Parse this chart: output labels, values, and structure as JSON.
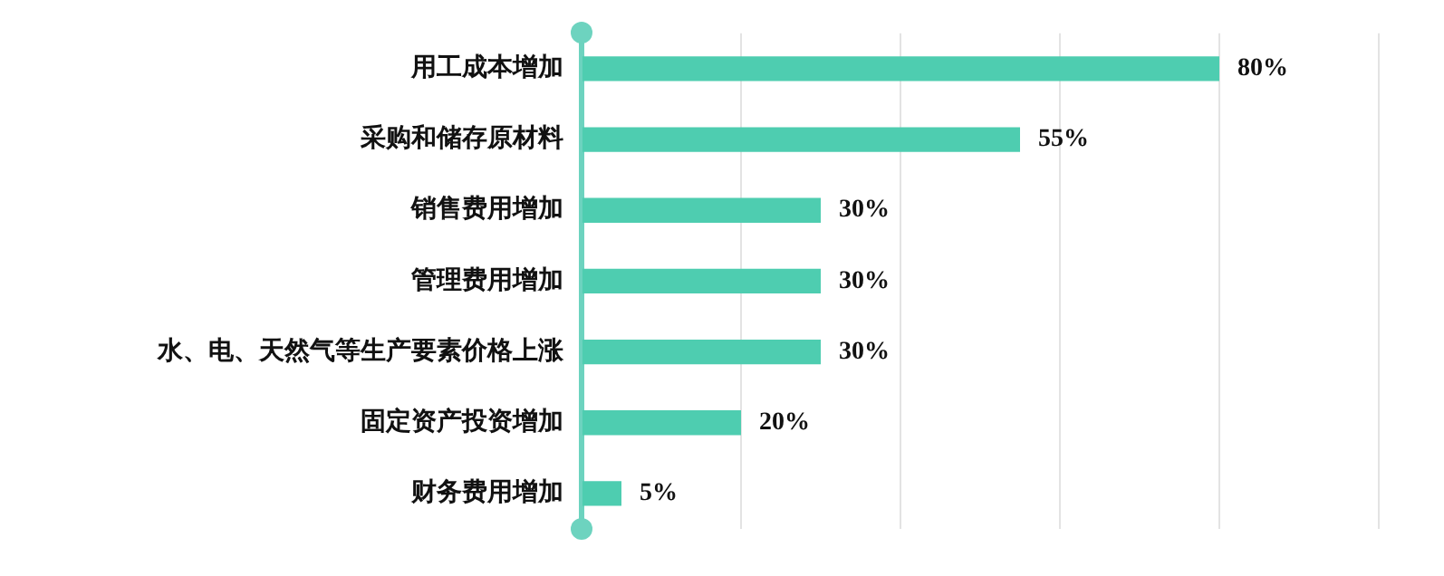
{
  "chart_data": {
    "type": "bar",
    "orientation": "horizontal",
    "categories": [
      "用工成本增加",
      "采购和储存原材料",
      "销售费用增加",
      "管理费用增加",
      "水、电、天然气等生产要素价格上涨",
      "固定资产投资增加",
      "财务费用增加"
    ],
    "values": [
      80,
      55,
      30,
      30,
      30,
      20,
      5
    ],
    "value_labels": [
      "80%",
      "55%",
      "30%",
      "30%",
      "30%",
      "20%",
      "5%"
    ],
    "color": "#4ecdb0",
    "xlim": [
      0,
      100
    ],
    "xticks": [
      {
        "value": 0,
        "label": null
      },
      {
        "value": 20,
        "label": null
      },
      {
        "value": 40,
        "label": null
      },
      {
        "value": 60,
        "label": null
      },
      {
        "value": 80,
        "label": null
      },
      {
        "value": 100,
        "label": null
      }
    ],
    "grid": "x",
    "tick_labels": "y",
    "legend": false
  }
}
